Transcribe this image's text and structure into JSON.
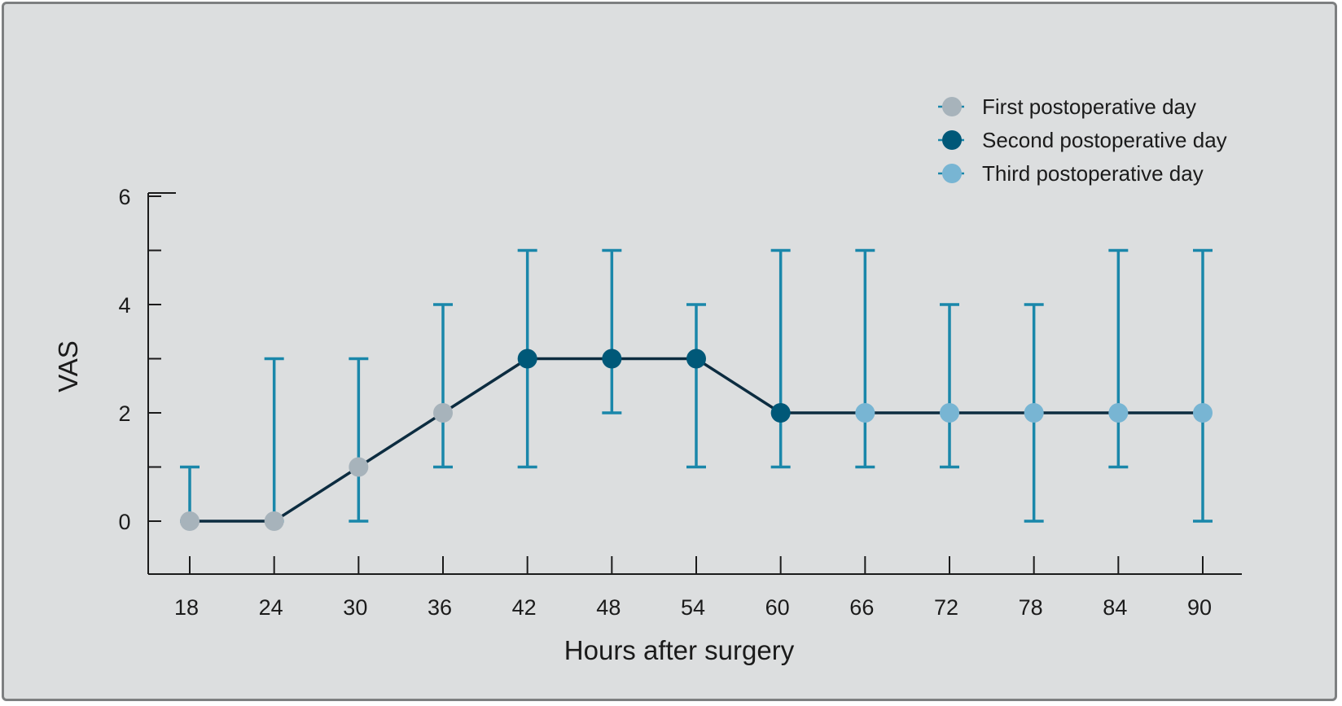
{
  "chart_data": {
    "type": "line",
    "xlabel": "Hours after surgery",
    "ylabel": "VAS",
    "x": [
      18,
      24,
      30,
      36,
      42,
      48,
      54,
      60,
      66,
      72,
      78,
      84,
      90
    ],
    "x_tick_labels": [
      "18",
      "24",
      "30",
      "36",
      "42",
      "48",
      "54",
      "60",
      "66",
      "72",
      "78",
      "84",
      "90"
    ],
    "y_tick_labels": [
      "0",
      "2",
      "4",
      "6"
    ],
    "y_ticks": [
      0,
      2,
      4,
      6
    ],
    "ylim": [
      -1,
      6
    ],
    "y": [
      0,
      0,
      1,
      2,
      3,
      3,
      3,
      2,
      2,
      2,
      2,
      2,
      2
    ],
    "err_low": [
      0,
      0,
      0,
      1,
      1,
      2,
      1,
      1,
      1,
      1,
      0,
      1,
      0
    ],
    "err_high": [
      1,
      3,
      3,
      4,
      5,
      5,
      4,
      5,
      5,
      4,
      4,
      5,
      5
    ],
    "point_group": [
      0,
      0,
      0,
      0,
      1,
      1,
      1,
      1,
      2,
      2,
      2,
      2,
      2
    ],
    "series": [
      {
        "name": "First postoperative day",
        "color": "#a7b3bb"
      },
      {
        "name": "Second postoperative day",
        "color": "#005878"
      },
      {
        "name": "Third postoperative day",
        "color": "#78b5d3"
      }
    ],
    "line_color": "#0c2c40",
    "errorbar_color": "#1a87aa",
    "axis_color": "#1b1b1b",
    "legend_position": "top-right",
    "grid": false
  }
}
